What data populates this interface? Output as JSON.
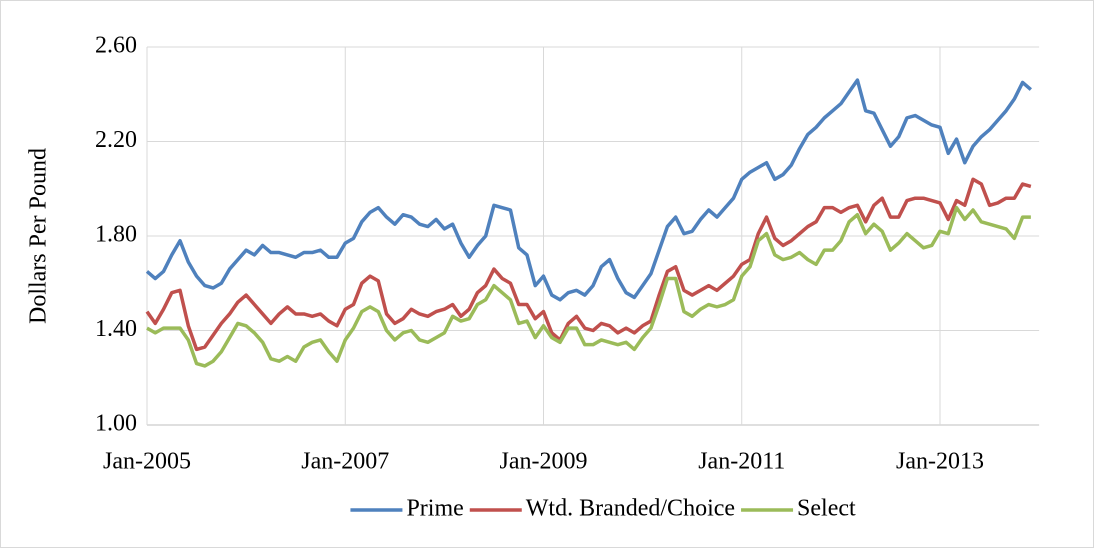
{
  "chart_data": {
    "type": "line",
    "ylabel": "Dollars Per Pound",
    "categories": [
      "Jan-2005",
      null,
      null,
      null,
      null,
      null,
      null,
      null,
      null,
      null,
      null,
      null,
      null,
      null,
      null,
      null,
      null,
      null,
      null,
      null,
      null,
      null,
      null,
      null,
      "Jan-2007",
      null,
      null,
      null,
      null,
      null,
      null,
      null,
      null,
      null,
      null,
      null,
      null,
      null,
      null,
      null,
      null,
      null,
      null,
      null,
      null,
      null,
      null,
      null,
      "Jan-2009",
      null,
      null,
      null,
      null,
      null,
      null,
      null,
      null,
      null,
      null,
      null,
      null,
      null,
      null,
      null,
      null,
      null,
      null,
      null,
      null,
      null,
      null,
      null,
      "Jan-2011",
      null,
      null,
      null,
      null,
      null,
      null,
      null,
      null,
      null,
      null,
      null,
      null,
      null,
      null,
      null,
      null,
      null,
      null,
      null,
      null,
      null,
      null,
      null,
      "Jan-2013",
      null,
      null,
      null,
      null,
      null,
      null,
      null,
      null,
      null,
      null,
      null
    ],
    "series": [
      {
        "name": "Prime",
        "color": "#4f81bd",
        "values": [
          1.65,
          1.62,
          1.65,
          1.72,
          1.78,
          1.69,
          1.63,
          1.59,
          1.58,
          1.6,
          1.66,
          1.7,
          1.74,
          1.72,
          1.76,
          1.73,
          1.73,
          1.72,
          1.71,
          1.73,
          1.73,
          1.74,
          1.71,
          1.71,
          1.77,
          1.79,
          1.86,
          1.9,
          1.92,
          1.88,
          1.85,
          1.89,
          1.88,
          1.85,
          1.84,
          1.87,
          1.83,
          1.85,
          1.77,
          1.71,
          1.76,
          1.8,
          1.93,
          1.92,
          1.91,
          1.75,
          1.72,
          1.59,
          1.63,
          1.55,
          1.53,
          1.56,
          1.57,
          1.55,
          1.59,
          1.67,
          1.7,
          1.62,
          1.56,
          1.54,
          1.59,
          1.64,
          1.74,
          1.84,
          1.88,
          1.81,
          1.82,
          1.87,
          1.91,
          1.88,
          1.92,
          1.96,
          2.04,
          2.07,
          2.09,
          2.11,
          2.04,
          2.06,
          2.1,
          2.17,
          2.23,
          2.26,
          2.3,
          2.33,
          2.36,
          2.41,
          2.46,
          2.33,
          2.32,
          2.25,
          2.18,
          2.22,
          2.3,
          2.31,
          2.29,
          2.27,
          2.26,
          2.15,
          2.21,
          2.11,
          2.18,
          2.22,
          2.25,
          2.29,
          2.33,
          2.38,
          2.45,
          2.42
        ]
      },
      {
        "name": "Wtd. Branded/Choice",
        "color": "#c0504d",
        "values": [
          1.48,
          1.43,
          1.49,
          1.56,
          1.57,
          1.42,
          1.32,
          1.33,
          1.38,
          1.43,
          1.47,
          1.52,
          1.55,
          1.51,
          1.47,
          1.43,
          1.47,
          1.5,
          1.47,
          1.47,
          1.46,
          1.47,
          1.44,
          1.42,
          1.49,
          1.51,
          1.6,
          1.63,
          1.61,
          1.47,
          1.43,
          1.45,
          1.49,
          1.47,
          1.46,
          1.48,
          1.49,
          1.51,
          1.46,
          1.49,
          1.56,
          1.59,
          1.66,
          1.62,
          1.6,
          1.51,
          1.51,
          1.45,
          1.48,
          1.39,
          1.36,
          1.43,
          1.46,
          1.41,
          1.4,
          1.43,
          1.42,
          1.39,
          1.41,
          1.39,
          1.42,
          1.44,
          1.55,
          1.65,
          1.67,
          1.57,
          1.55,
          1.57,
          1.59,
          1.57,
          1.6,
          1.63,
          1.68,
          1.7,
          1.81,
          1.88,
          1.79,
          1.76,
          1.78,
          1.81,
          1.84,
          1.86,
          1.92,
          1.92,
          1.9,
          1.92,
          1.93,
          1.86,
          1.93,
          1.96,
          1.88,
          1.88,
          1.95,
          1.96,
          1.96,
          1.95,
          1.94,
          1.87,
          1.95,
          1.93,
          2.04,
          2.02,
          1.93,
          1.94,
          1.96,
          1.96,
          2.02,
          2.01
        ]
      },
      {
        "name": "Select",
        "color": "#9bbb59",
        "values": [
          1.41,
          1.39,
          1.41,
          1.41,
          1.41,
          1.36,
          1.26,
          1.25,
          1.27,
          1.31,
          1.37,
          1.43,
          1.42,
          1.39,
          1.35,
          1.28,
          1.27,
          1.29,
          1.27,
          1.33,
          1.35,
          1.36,
          1.31,
          1.27,
          1.36,
          1.41,
          1.48,
          1.5,
          1.48,
          1.4,
          1.36,
          1.39,
          1.4,
          1.36,
          1.35,
          1.37,
          1.39,
          1.46,
          1.44,
          1.45,
          1.51,
          1.53,
          1.59,
          1.56,
          1.53,
          1.43,
          1.44,
          1.37,
          1.42,
          1.37,
          1.35,
          1.41,
          1.41,
          1.34,
          1.34,
          1.36,
          1.35,
          1.34,
          1.35,
          1.32,
          1.37,
          1.41,
          1.51,
          1.62,
          1.62,
          1.48,
          1.46,
          1.49,
          1.51,
          1.5,
          1.51,
          1.53,
          1.63,
          1.67,
          1.78,
          1.81,
          1.72,
          1.7,
          1.71,
          1.73,
          1.7,
          1.68,
          1.74,
          1.74,
          1.78,
          1.86,
          1.89,
          1.81,
          1.85,
          1.82,
          1.74,
          1.77,
          1.81,
          1.78,
          1.75,
          1.76,
          1.82,
          1.81,
          1.92,
          1.87,
          1.91,
          1.86,
          1.85,
          1.84,
          1.83,
          1.79,
          1.88,
          1.88
        ]
      }
    ],
    "ylim": [
      1.0,
      2.6
    ],
    "yticks": [
      {
        "value": 1.0,
        "label": "1.00"
      },
      {
        "value": 1.4,
        "label": "1.40"
      },
      {
        "value": 1.8,
        "label": "1.80"
      },
      {
        "value": 2.2,
        "label": "2.20"
      },
      {
        "value": 2.6,
        "label": "2.60"
      }
    ],
    "grid": true,
    "legend": "bottom"
  }
}
